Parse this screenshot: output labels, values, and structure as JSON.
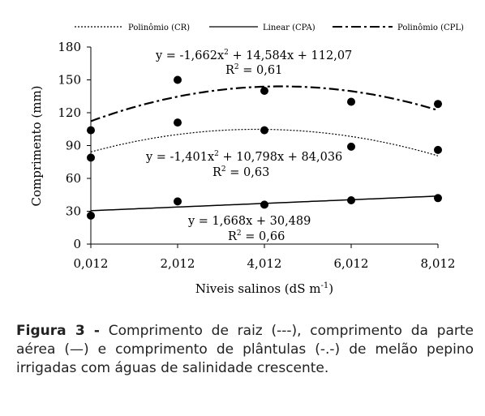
{
  "chart_data": {
    "type": "scatter",
    "xlabel": "Niveis salinos (dS m",
    "xlabel_sup": "-1",
    "xlabel_end": ")",
    "ylabel": "Comprimento  (mm)",
    "x_ticks": [
      "0,012",
      "2,012",
      "4,012",
      "6,012",
      "8,012"
    ],
    "x_values": [
      0.012,
      2.012,
      4.012,
      6.012,
      8.012
    ],
    "y_ticks": [
      "0",
      "30",
      "60",
      "90",
      "120",
      "150",
      "180"
    ],
    "ylim": [
      0,
      180
    ],
    "xlim": [
      0.012,
      8.012
    ],
    "grid": false,
    "legend_position": "top",
    "series": [
      {
        "name": "Polinômio (CR)",
        "line_style": "dotted",
        "points": [
          [
            0.012,
            79
          ],
          [
            2.012,
            111
          ],
          [
            4.012,
            104
          ],
          [
            6.012,
            89
          ],
          [
            8.012,
            86
          ]
        ],
        "equation_a": "y = -1,401x",
        "equation_b": " + 10,798x + 84,036",
        "r2_a": "R",
        "r2_b": " = 0,63",
        "coef": [
          -1.401,
          10.798,
          84.036
        ]
      },
      {
        "name": "Linear (CPA)",
        "line_style": "solid",
        "points": [
          [
            0.012,
            26
          ],
          [
            2.012,
            39
          ],
          [
            4.012,
            36
          ],
          [
            6.012,
            40
          ],
          [
            8.012,
            42
          ]
        ],
        "equation_a": "y = 1,668x + 30,489",
        "equation_b": "",
        "r2_a": "R",
        "r2_b": " = 0,66",
        "coef": [
          0,
          1.668,
          30.489
        ]
      },
      {
        "name": "Polinômio (CPL)",
        "line_style": "dash-dot",
        "points": [
          [
            0.012,
            104
          ],
          [
            2.012,
            150
          ],
          [
            4.012,
            140
          ],
          [
            6.012,
            130
          ],
          [
            8.012,
            128
          ]
        ],
        "equation_a": "y = -1,662x",
        "equation_b": " + 14,584x + 112,07",
        "r2_a": "R",
        "r2_b": " = 0,61",
        "coef": [
          -1.662,
          14.584,
          112.07
        ]
      }
    ]
  },
  "caption": {
    "label": "Figura 3 -",
    "text": " Comprimento de raiz (---), comprimento da parte aérea (—) e comprimento de plântulas (-.-) de melão pepino irrigadas com águas de salinidade crescente."
  }
}
